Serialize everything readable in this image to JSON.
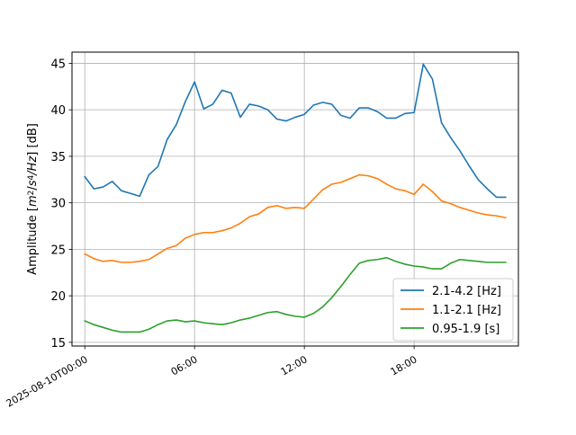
{
  "chart_data": {
    "type": "line",
    "title": "",
    "xlabel": "",
    "ylabel_parts": [
      "Amplitude [",
      "m",
      "2",
      "/",
      "s",
      "4",
      "/",
      "Hz",
      "] [dB]"
    ],
    "x_ticks": [
      {
        "hour": 0,
        "label": "2025-08-10T00:00"
      },
      {
        "hour": 6,
        "label": "06:00"
      },
      {
        "hour": 12,
        "label": "12:00"
      },
      {
        "hour": 18,
        "label": "18:00"
      }
    ],
    "y_ticks": [
      15,
      20,
      25,
      30,
      35,
      40,
      45
    ],
    "xlim_hours": [
      -0.7,
      23.7
    ],
    "ylim": [
      14.6,
      46.2
    ],
    "grid": true,
    "legend_position": "lower right",
    "x_hours": [
      0,
      0.5,
      1,
      1.5,
      2,
      2.5,
      3,
      3.5,
      4,
      4.5,
      5,
      5.5,
      6,
      6.5,
      7,
      7.5,
      8,
      8.5,
      9,
      9.5,
      10,
      10.5,
      11,
      11.5,
      12,
      12.5,
      13,
      13.5,
      14,
      14.5,
      15,
      15.5,
      16,
      16.5,
      17,
      17.5,
      18,
      18.5,
      19,
      19.5,
      20,
      20.5,
      21,
      21.5,
      22,
      22.5,
      23
    ],
    "series": [
      {
        "name": "2.1-4.2 [Hz]",
        "color": "#1f77b4",
        "values": [
          32.8,
          31.5,
          31.7,
          32.3,
          31.3,
          31.0,
          30.7,
          33.0,
          33.9,
          36.8,
          38.4,
          40.9,
          43.0,
          40.1,
          40.6,
          42.1,
          41.8,
          39.2,
          40.6,
          40.4,
          40.0,
          39.0,
          38.8,
          39.2,
          39.5,
          40.5,
          40.8,
          40.6,
          39.4,
          39.1,
          40.2,
          40.2,
          39.8,
          39.1,
          39.1,
          39.6,
          39.7,
          44.9,
          43.3,
          38.6,
          37.0,
          35.6,
          34.0,
          32.5,
          31.5,
          30.6,
          30.6
        ]
      },
      {
        "name": "1.1-2.1 [Hz]",
        "color": "#ff7f0e",
        "values": [
          24.5,
          24.0,
          23.7,
          23.8,
          23.6,
          23.6,
          23.7,
          23.9,
          24.5,
          25.1,
          25.4,
          26.2,
          26.6,
          26.8,
          26.8,
          27.0,
          27.3,
          27.8,
          28.5,
          28.8,
          29.5,
          29.7,
          29.4,
          29.5,
          29.4,
          30.4,
          31.4,
          32.0,
          32.2,
          32.6,
          33.0,
          32.9,
          32.6,
          32.0,
          31.5,
          31.3,
          30.9,
          32.0,
          31.2,
          30.2,
          29.9,
          29.5,
          29.2,
          28.9,
          28.7,
          28.6,
          28.4
        ]
      },
      {
        "name": "0.95-1.9 [s]",
        "color": "#2ca02c",
        "values": [
          17.3,
          16.9,
          16.6,
          16.3,
          16.1,
          16.1,
          16.1,
          16.4,
          16.9,
          17.3,
          17.4,
          17.2,
          17.3,
          17.1,
          17.0,
          16.9,
          17.1,
          17.4,
          17.6,
          17.9,
          18.2,
          18.3,
          18.0,
          17.8,
          17.7,
          18.1,
          18.8,
          19.8,
          21.0,
          22.3,
          23.5,
          23.8,
          23.9,
          24.1,
          23.7,
          23.4,
          23.2,
          23.1,
          22.9,
          22.9,
          23.5,
          23.9,
          23.8,
          23.7,
          23.6,
          23.6,
          23.6
        ]
      }
    ]
  }
}
